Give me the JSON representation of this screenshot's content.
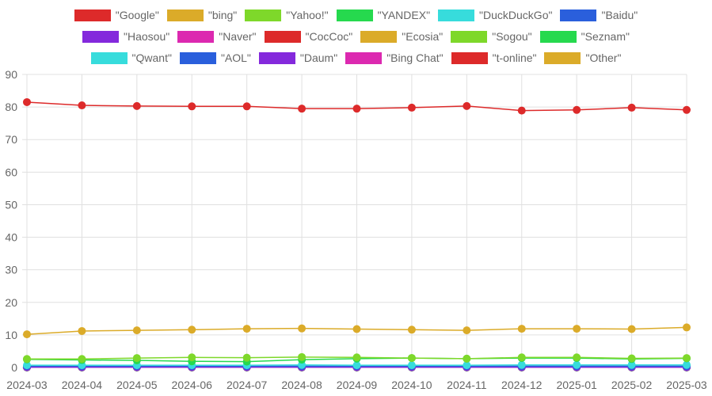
{
  "chart_data": {
    "type": "line",
    "categories": [
      "2024-03",
      "2024-04",
      "2024-05",
      "2024-06",
      "2024-07",
      "2024-08",
      "2024-09",
      "2024-10",
      "2024-11",
      "2024-12",
      "2025-01",
      "2025-02",
      "2025-03"
    ],
    "ylim": [
      0,
      90
    ],
    "yticks": [
      "0",
      "10",
      "20",
      "30",
      "40",
      "50",
      "60",
      "70",
      "80",
      "90"
    ],
    "grid": true,
    "legend_position": "top",
    "series": [
      {
        "name": "\"Google\"",
        "color": "#dd2a2a",
        "values": [
          81.5,
          80.5,
          80.3,
          80.2,
          80.2,
          79.5,
          79.5,
          79.8,
          80.3,
          78.9,
          79.1,
          79.8,
          79.1
        ]
      },
      {
        "name": "\"bing\"",
        "color": "#dbab29",
        "values": [
          10.2,
          11.2,
          11.4,
          11.6,
          11.9,
          12.0,
          11.8,
          11.6,
          11.4,
          11.9,
          11.9,
          11.8,
          12.3
        ]
      },
      {
        "name": "\"Yahoo!\"",
        "color": "#7ed82a",
        "values": [
          2.6,
          2.6,
          2.9,
          3.1,
          3.0,
          3.2,
          3.1,
          2.9,
          2.7,
          3.1,
          3.1,
          2.8,
          2.9
        ]
      },
      {
        "name": "\"YANDEX\"",
        "color": "#26d94e",
        "values": [
          2.5,
          2.3,
          2.2,
          1.9,
          1.8,
          2.4,
          2.7,
          2.9,
          2.7,
          2.9,
          2.9,
          2.6,
          2.8
        ]
      },
      {
        "name": "\"DuckDuckGo\"",
        "color": "#37dcdc",
        "values": [
          0.7,
          0.7,
          0.7,
          0.7,
          0.7,
          0.8,
          0.7,
          0.7,
          0.7,
          0.8,
          0.8,
          0.8,
          0.8
        ]
      },
      {
        "name": "\"Baidu\"",
        "color": "#2a5fdc",
        "values": [
          0.4,
          0.4,
          0.4,
          0.4,
          0.4,
          0.4,
          0.4,
          0.4,
          0.4,
          0.4,
          0.4,
          0.4,
          0.4
        ]
      },
      {
        "name": "\"Haosou\"",
        "color": "#8429dc",
        "values": [
          0.1,
          0.1,
          0.1,
          0.1,
          0.1,
          0.1,
          0.1,
          0.1,
          0.1,
          0.1,
          0.1,
          0.1,
          0.1
        ]
      },
      {
        "name": "\"Naver\"",
        "color": "#dc29b0",
        "values": [
          0.1,
          0.1,
          0.1,
          0.1,
          0.1,
          0.1,
          0.1,
          0.1,
          0.1,
          0.1,
          0.1,
          0.1,
          0.1
        ]
      },
      {
        "name": "\"CocCoc\"",
        "color": "#dd2a2a",
        "values": [
          0.1,
          0.1,
          0.1,
          0.1,
          0.1,
          0.1,
          0.1,
          0.1,
          0.1,
          0.1,
          0.1,
          0.1,
          0.1
        ]
      },
      {
        "name": "\"Ecosia\"",
        "color": "#dbab29",
        "values": [
          0.1,
          0.1,
          0.1,
          0.1,
          0.1,
          0.1,
          0.1,
          0.1,
          0.1,
          0.1,
          0.1,
          0.1,
          0.1
        ]
      },
      {
        "name": "\"Sogou\"",
        "color": "#7ed82a",
        "values": [
          0.05,
          0.05,
          0.05,
          0.05,
          0.05,
          0.05,
          0.05,
          0.05,
          0.05,
          0.05,
          0.05,
          0.05,
          0.05
        ]
      },
      {
        "name": "\"Seznam\"",
        "color": "#26d94e",
        "values": [
          0.05,
          0.05,
          0.05,
          0.05,
          0.05,
          0.05,
          0.05,
          0.05,
          0.05,
          0.05,
          0.05,
          0.05,
          0.05
        ]
      },
      {
        "name": "\"Qwant\"",
        "color": "#37dcdc",
        "values": [
          0.05,
          0.05,
          0.05,
          0.05,
          0.05,
          0.05,
          0.05,
          0.05,
          0.05,
          0.05,
          0.05,
          0.05,
          0.05
        ]
      },
      {
        "name": "\"AOL\"",
        "color": "#2a5fdc",
        "values": [
          0.05,
          0.05,
          0.05,
          0.05,
          0.05,
          0.05,
          0.05,
          0.05,
          0.05,
          0.05,
          0.05,
          0.05,
          0.05
        ]
      },
      {
        "name": "\"Daum\"",
        "color": "#8429dc",
        "values": [
          0.05,
          0.05,
          0.05,
          0.05,
          0.05,
          0.05,
          0.05,
          0.05,
          0.05,
          0.05,
          0.05,
          0.05,
          0.05
        ]
      },
      {
        "name": "\"Bing Chat\"",
        "color": "#dc29b0",
        "values": [
          0.05,
          0.05,
          0.05,
          0.05,
          0.05,
          0.05,
          0.05,
          0.05,
          0.05,
          0.05,
          0.05,
          0.05,
          0.05
        ]
      },
      {
        "name": "\"t-online\"",
        "color": "#dd2a2a",
        "values": [
          0.05,
          0.05,
          0.05,
          0.05,
          0.05,
          0.05,
          0.05,
          0.05,
          0.05,
          0.05,
          0.05,
          0.05,
          0.05
        ]
      },
      {
        "name": "\"Other\"",
        "color": "#dbab29",
        "values": [
          0.1,
          0.1,
          0.1,
          0.1,
          0.1,
          0.1,
          0.1,
          0.1,
          0.1,
          0.1,
          0.1,
          0.1,
          0.1
        ]
      }
    ]
  }
}
